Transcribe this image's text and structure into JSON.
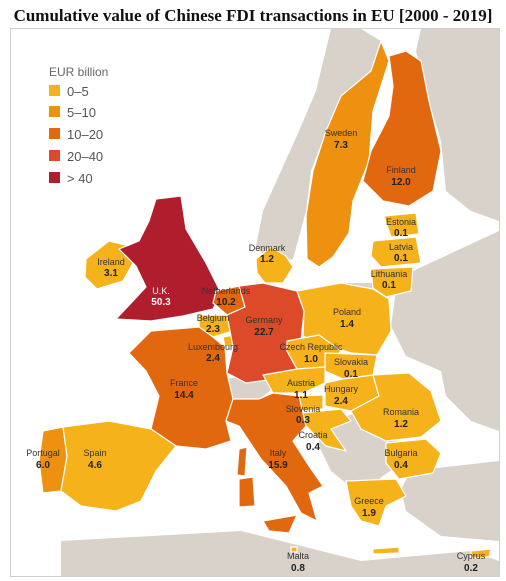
{
  "title": "Cumulative value of Chinese FDI transactions in EU [2000 - 2019]",
  "legend": {
    "title": "EUR billion",
    "items": [
      {
        "label": "0–5",
        "color": "#f5b21a"
      },
      {
        "label": "5–10",
        "color": "#ee9010"
      },
      {
        "label": "10–20",
        "color": "#e2680f"
      },
      {
        "label": "20–40",
        "color": "#dd4a2a"
      },
      {
        "label": "> 40",
        "color": "#b01e2e"
      }
    ]
  },
  "colors": {
    "sea": "#ffffff",
    "non_eu": "#d8d2cb",
    "border": "#ffffff"
  },
  "countries": [
    {
      "name": "Sweden",
      "value": "7.3"
    },
    {
      "name": "Finland",
      "value": "12.0"
    },
    {
      "name": "Estonia",
      "value": "0.1"
    },
    {
      "name": "Latvia",
      "value": "0.1"
    },
    {
      "name": "Lithuania",
      "value": "0.1"
    },
    {
      "name": "Denmark",
      "value": "1.2"
    },
    {
      "name": "Ireland",
      "value": "3.1"
    },
    {
      "name": "U.K.",
      "value": "50.3"
    },
    {
      "name": "Netherlands",
      "value": "10.2"
    },
    {
      "name": "Belgium",
      "value": "2.3"
    },
    {
      "name": "Luxembourg",
      "value": "2.4"
    },
    {
      "name": "Germany",
      "value": "22.7"
    },
    {
      "name": "Poland",
      "value": "1.4"
    },
    {
      "name": "Czech Republic",
      "value": "1.0"
    },
    {
      "name": "Slovakia",
      "value": "0.1"
    },
    {
      "name": "Austria",
      "value": "1.1"
    },
    {
      "name": "Hungary",
      "value": "2.4"
    },
    {
      "name": "Slovenia",
      "value": "0.3"
    },
    {
      "name": "Romania",
      "value": "1.2"
    },
    {
      "name": "France",
      "value": "14.4"
    },
    {
      "name": "Croatia",
      "value": "0.4"
    },
    {
      "name": "Bulgaria",
      "value": "0.4"
    },
    {
      "name": "Portugal",
      "value": "6.0"
    },
    {
      "name": "Spain",
      "value": "4.6"
    },
    {
      "name": "Italy",
      "value": "15.9"
    },
    {
      "name": "Greece",
      "value": "1.9"
    },
    {
      "name": "Malta",
      "value": "0.8"
    },
    {
      "name": "Cyprus",
      "value": "0.2"
    }
  ]
}
